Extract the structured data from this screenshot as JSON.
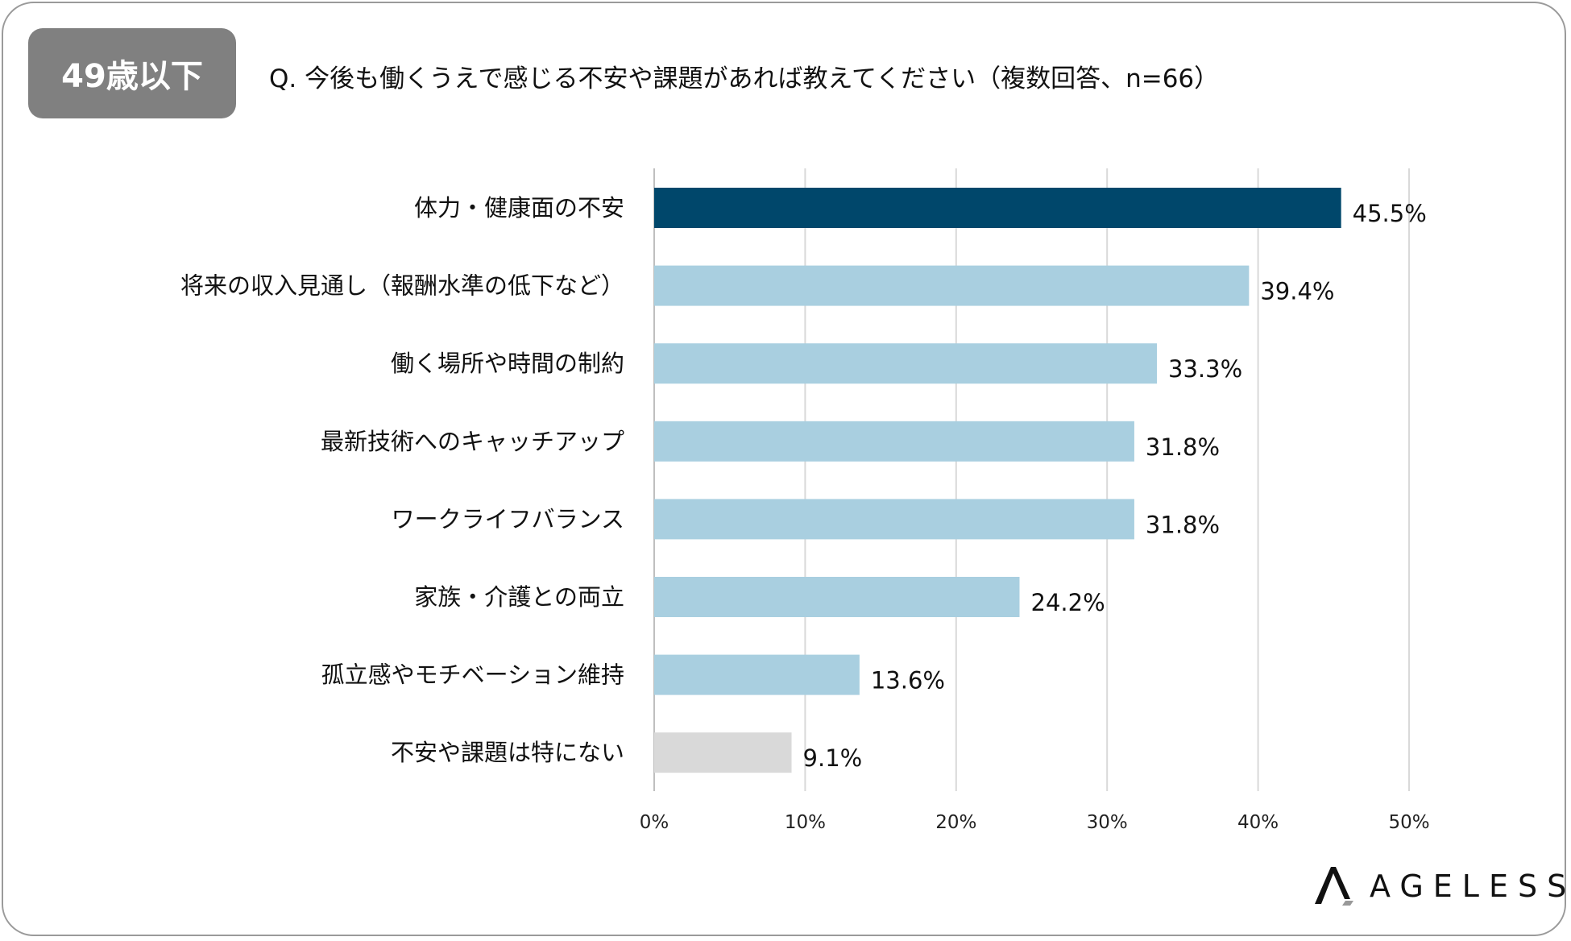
{
  "badge": "49歳以下",
  "title": "Q. 今後も働くうえで感じる不安や課題があれば教えてください（複数回答、n=66）",
  "logo": "AGELESS",
  "chart_data": {
    "type": "bar",
    "orientation": "horizontal",
    "title": "Q. 今後も働くうえで感じる不安や課題があれば教えてください（複数回答、n=66）",
    "categories": [
      "体力・健康面の不安",
      "将来の収入見通し（報酬水準の低下など）",
      "働く場所や時間の制約",
      "最新技術へのキャッチアップ",
      "ワークライフバランス",
      "家族・介護との両立",
      "孤立感やモチベーション維持",
      "不安や課題は特にない"
    ],
    "values": [
      45.5,
      39.4,
      33.3,
      31.8,
      31.8,
      24.2,
      13.6,
      9.1
    ],
    "value_labels": [
      "45.5%",
      "39.4%",
      "33.3%",
      "31.8%",
      "31.8%",
      "24.2%",
      "13.6%",
      "9.1%"
    ],
    "bar_colors": [
      "#00476b",
      "#a9cfe0",
      "#a9cfe0",
      "#a9cfe0",
      "#a9cfe0",
      "#a9cfe0",
      "#a9cfe0",
      "#d9d9d9"
    ],
    "xlim": [
      0,
      50
    ],
    "xticks": [
      "0%",
      "10%",
      "20%",
      "30%",
      "40%",
      "50%"
    ],
    "grid": true,
    "xlabel": "",
    "ylabel": ""
  }
}
